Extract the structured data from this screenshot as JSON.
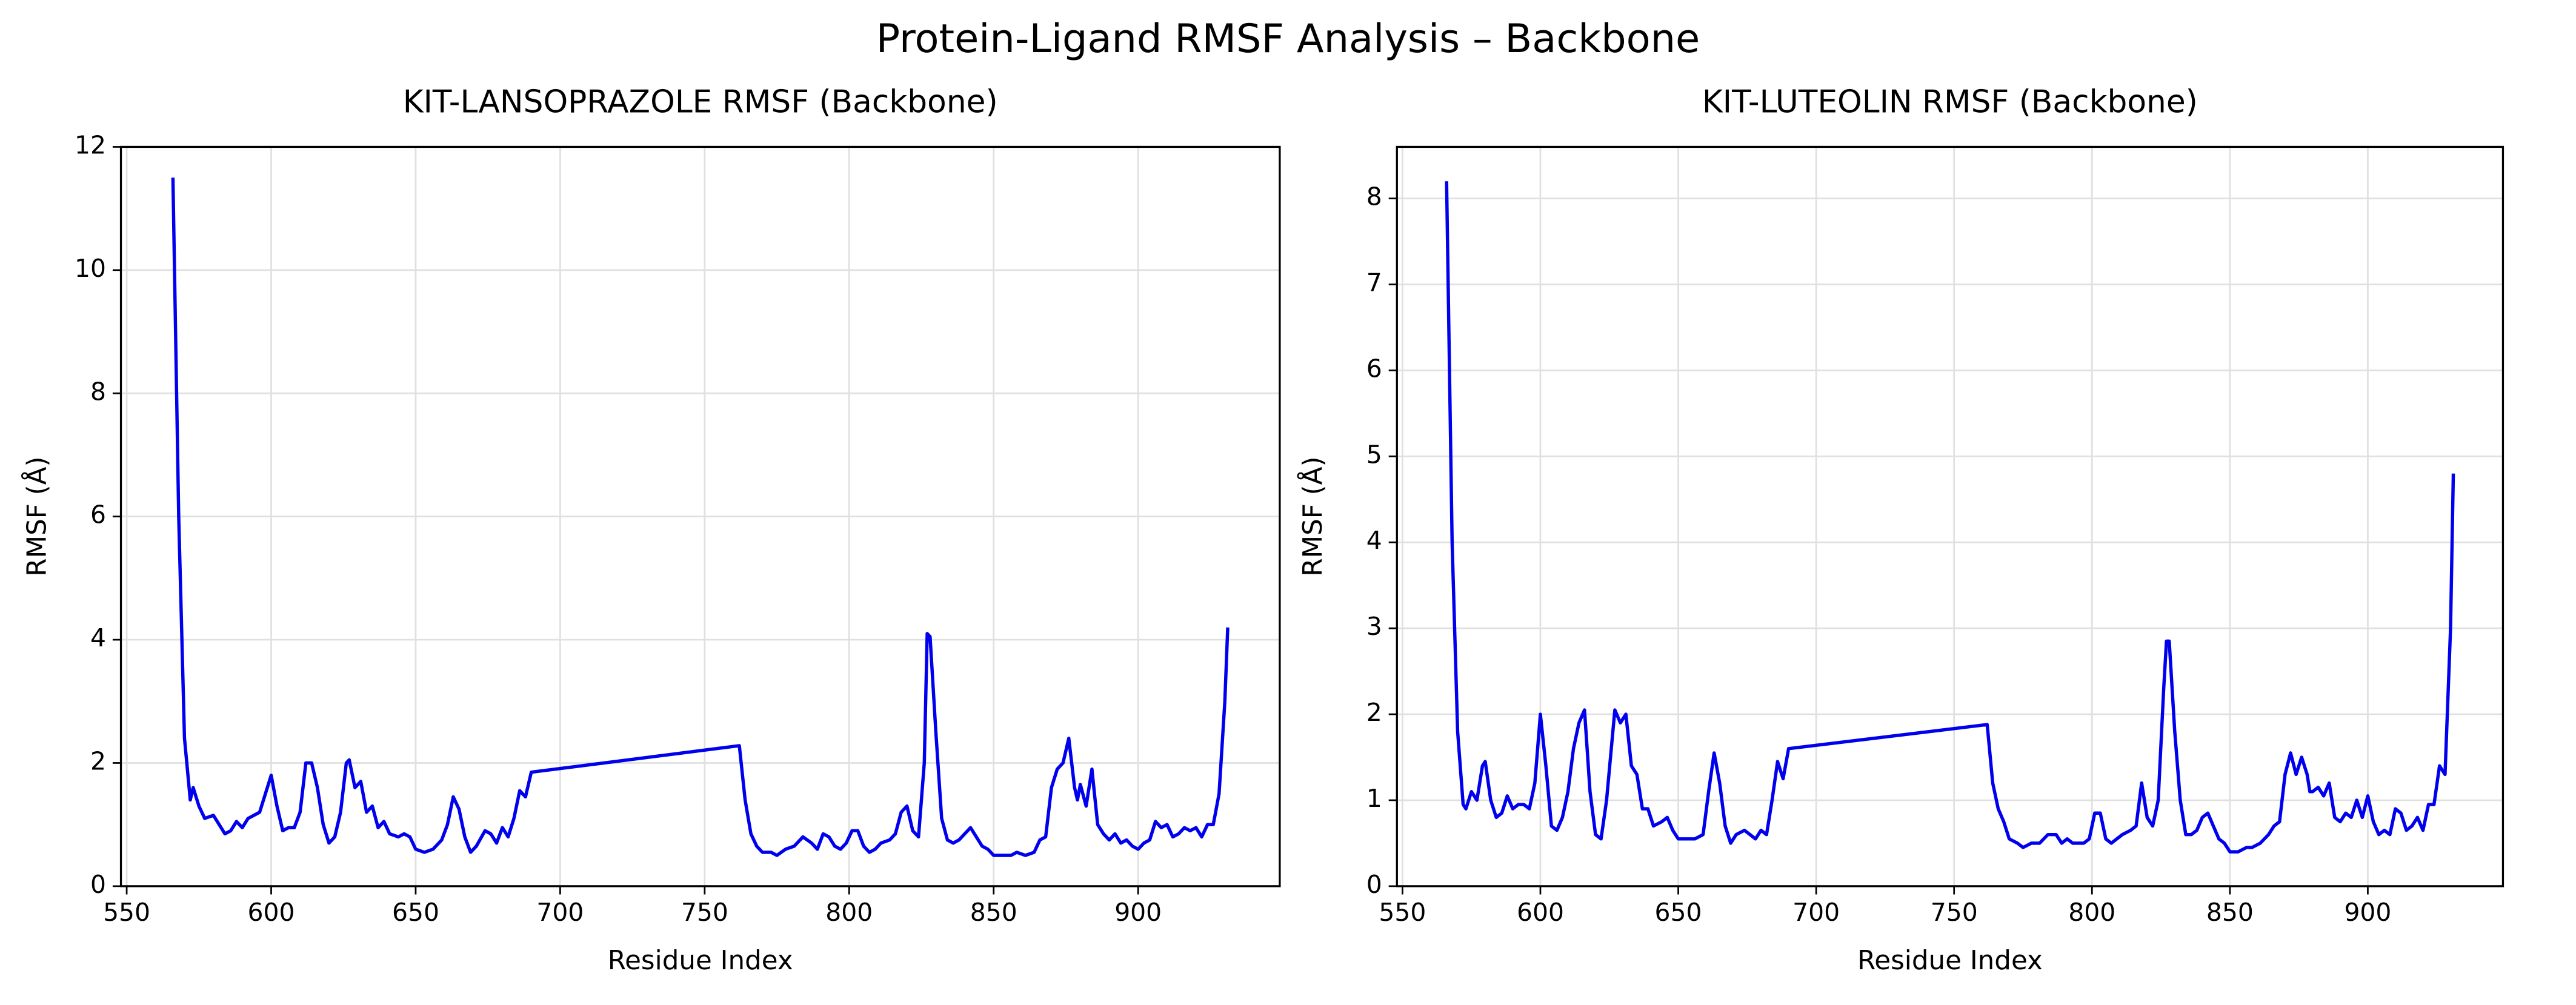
{
  "title": "Protein-Ligand RMSF Analysis – Backbone",
  "chart_data": [
    {
      "type": "line",
      "title": "KIT-LANSOPRAZOLE RMSF (Backbone)",
      "x_label": "Residue Index",
      "y_label": "RMSF (Å)",
      "xlim": [
        548,
        949
      ],
      "ylim": [
        0,
        12
      ],
      "xticks": [
        550,
        600,
        650,
        700,
        750,
        800,
        850,
        900
      ],
      "yticks": [
        0,
        2,
        4,
        6,
        8,
        10,
        12
      ],
      "grid": true,
      "x": [
        566,
        568,
        570,
        572,
        573,
        575,
        577,
        580,
        582,
        584,
        586,
        588,
        590,
        592,
        594,
        596,
        598,
        600,
        602,
        604,
        606,
        608,
        610,
        612,
        614,
        616,
        618,
        620,
        622,
        624,
        626,
        627,
        629,
        631,
        633,
        635,
        637,
        639,
        641,
        644,
        646,
        648,
        650,
        653,
        656,
        659,
        661,
        663,
        665,
        667,
        669,
        671,
        674,
        676,
        678,
        680,
        682,
        684,
        686,
        688,
        690,
        762,
        764,
        766,
        768,
        770,
        773,
        775,
        778,
        781,
        784,
        787,
        789,
        791,
        793,
        795,
        797,
        799,
        801,
        803,
        805,
        807,
        809,
        811,
        814,
        816,
        818,
        820,
        822,
        824,
        826,
        827,
        828,
        830,
        832,
        834,
        836,
        838,
        840,
        842,
        844,
        846,
        848,
        850,
        853,
        856,
        858,
        861,
        864,
        866,
        868,
        870,
        872,
        874,
        876,
        878,
        879,
        880,
        882,
        884,
        886,
        888,
        890,
        892,
        894,
        896,
        898,
        900,
        902,
        904,
        906,
        908,
        910,
        912,
        914,
        916,
        918,
        920,
        922,
        924,
        926,
        928,
        930,
        931
      ],
      "series": [
        {
          "name": "KIT-LANSOPRAZOLE",
          "color": "#0000ee",
          "values": [
            11.5,
            6,
            2.4,
            1.4,
            1.6,
            1.3,
            1.1,
            1.15,
            1.0,
            0.85,
            0.9,
            1.05,
            0.95,
            1.1,
            1.15,
            1.2,
            1.5,
            1.8,
            1.3,
            0.9,
            0.95,
            0.95,
            1.2,
            2.0,
            2.0,
            1.6,
            1.0,
            0.7,
            0.8,
            1.2,
            2.0,
            2.05,
            1.6,
            1.7,
            1.2,
            1.3,
            0.95,
            1.05,
            0.85,
            0.8,
            0.85,
            0.8,
            0.6,
            0.55,
            0.6,
            0.75,
            1.0,
            1.45,
            1.25,
            0.8,
            0.55,
            0.65,
            0.9,
            0.85,
            0.7,
            0.95,
            0.8,
            1.1,
            1.55,
            1.45,
            1.85,
            2.28,
            1.4,
            0.85,
            0.65,
            0.55,
            0.55,
            0.5,
            0.6,
            0.65,
            0.8,
            0.7,
            0.6,
            0.85,
            0.8,
            0.65,
            0.6,
            0.7,
            0.9,
            0.9,
            0.65,
            0.55,
            0.6,
            0.7,
            0.75,
            0.85,
            1.2,
            1.3,
            0.9,
            0.8,
            2.0,
            4.1,
            4.05,
            2.5,
            1.1,
            0.75,
            0.7,
            0.75,
            0.85,
            0.95,
            0.8,
            0.65,
            0.6,
            0.5,
            0.5,
            0.5,
            0.55,
            0.5,
            0.55,
            0.75,
            0.8,
            1.6,
            1.9,
            2.0,
            2.4,
            1.6,
            1.4,
            1.65,
            1.3,
            1.9,
            1.0,
            0.85,
            0.75,
            0.85,
            0.7,
            0.75,
            0.65,
            0.6,
            0.7,
            0.75,
            1.05,
            0.95,
            1.0,
            0.8,
            0.85,
            0.95,
            0.9,
            0.95,
            0.8,
            1.0,
            1.0,
            1.5,
            3.0,
            4.2
          ]
        }
      ]
    },
    {
      "type": "line",
      "title": "KIT-LUTEOLIN RMSF (Backbone)",
      "x_label": "Residue Index",
      "y_label": "RMSF (Å)",
      "xlim": [
        548,
        949
      ],
      "ylim": [
        0,
        8.6
      ],
      "xticks": [
        550,
        600,
        650,
        700,
        750,
        800,
        850,
        900
      ],
      "yticks": [
        0,
        1,
        2,
        3,
        4,
        5,
        6,
        7,
        8
      ],
      "grid": true,
      "x": [
        566,
        568,
        570,
        572,
        573,
        575,
        577,
        579,
        580,
        582,
        584,
        586,
        588,
        590,
        592,
        594,
        596,
        598,
        600,
        602,
        604,
        606,
        608,
        610,
        612,
        614,
        616,
        618,
        620,
        622,
        624,
        626,
        627,
        629,
        631,
        633,
        635,
        637,
        639,
        641,
        644,
        646,
        648,
        650,
        653,
        656,
        659,
        661,
        663,
        665,
        667,
        669,
        671,
        674,
        676,
        678,
        680,
        682,
        684,
        686,
        688,
        690,
        762,
        764,
        766,
        768,
        770,
        773,
        775,
        778,
        781,
        784,
        787,
        789,
        791,
        793,
        795,
        797,
        799,
        801,
        803,
        805,
        807,
        809,
        811,
        814,
        816,
        818,
        820,
        822,
        824,
        826,
        827,
        828,
        830,
        832,
        834,
        836,
        838,
        840,
        842,
        844,
        846,
        848,
        850,
        853,
        856,
        858,
        861,
        864,
        866,
        868,
        870,
        872,
        874,
        876,
        878,
        879,
        880,
        882,
        884,
        886,
        888,
        890,
        892,
        894,
        896,
        898,
        900,
        902,
        904,
        906,
        908,
        910,
        912,
        914,
        916,
        918,
        920,
        922,
        924,
        926,
        928,
        930,
        931
      ],
      "series": [
        {
          "name": "KIT-LUTEOLIN",
          "color": "#0000ee",
          "values": [
            8.2,
            4.0,
            1.8,
            0.95,
            0.9,
            1.1,
            1.0,
            1.4,
            1.45,
            1.0,
            0.8,
            0.85,
            1.05,
            0.9,
            0.95,
            0.95,
            0.9,
            1.2,
            2.0,
            1.4,
            0.7,
            0.65,
            0.8,
            1.1,
            1.6,
            1.9,
            2.05,
            1.1,
            0.6,
            0.55,
            1.0,
            1.7,
            2.05,
            1.9,
            2.0,
            1.4,
            1.3,
            0.9,
            0.9,
            0.7,
            0.75,
            0.8,
            0.65,
            0.55,
            0.55,
            0.55,
            0.6,
            1.1,
            1.55,
            1.2,
            0.7,
            0.5,
            0.6,
            0.65,
            0.6,
            0.55,
            0.65,
            0.6,
            1.0,
            1.45,
            1.25,
            1.6,
            1.88,
            1.2,
            0.9,
            0.75,
            0.55,
            0.5,
            0.45,
            0.5,
            0.5,
            0.6,
            0.6,
            0.5,
            0.55,
            0.5,
            0.5,
            0.5,
            0.55,
            0.85,
            0.85,
            0.55,
            0.5,
            0.55,
            0.6,
            0.65,
            0.7,
            1.2,
            0.8,
            0.7,
            1.0,
            2.3,
            2.85,
            2.85,
            1.8,
            1.0,
            0.6,
            0.6,
            0.65,
            0.8,
            0.85,
            0.7,
            0.55,
            0.5,
            0.4,
            0.4,
            0.45,
            0.45,
            0.5,
            0.6,
            0.7,
            0.75,
            1.3,
            1.55,
            1.3,
            1.5,
            1.3,
            1.1,
            1.1,
            1.15,
            1.05,
            1.2,
            0.8,
            0.75,
            0.85,
            0.8,
            1.0,
            0.8,
            1.05,
            0.75,
            0.6,
            0.65,
            0.6,
            0.9,
            0.85,
            0.65,
            0.7,
            0.8,
            0.65,
            0.95,
            0.95,
            1.4,
            1.3,
            3.0,
            4.8
          ]
        }
      ]
    }
  ]
}
